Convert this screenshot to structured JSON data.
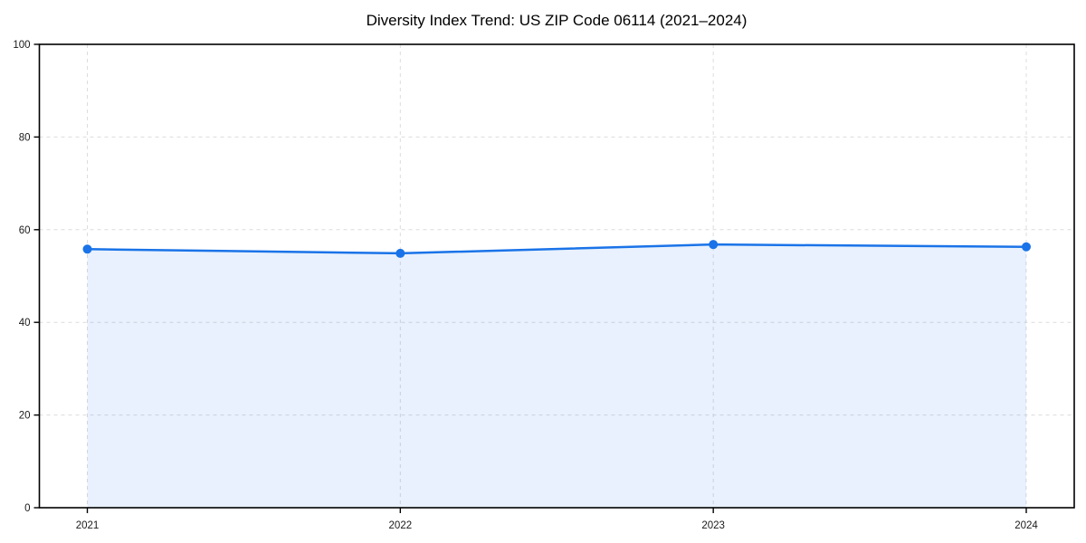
{
  "title": "Diversity Index Trend: US ZIP Code 06114 (2021–2024)",
  "chart_data": {
    "type": "line",
    "title": "Diversity Index Trend: US ZIP Code 06114 (2021–2024)",
    "x": [
      2021,
      2022,
      2023,
      2024
    ],
    "series": [
      {
        "name": "Diversity Index",
        "values": [
          55.8,
          54.9,
          56.8,
          56.3
        ]
      }
    ],
    "xlabel": "",
    "ylabel": "",
    "ylim": [
      0,
      100
    ],
    "yticks": [
      0,
      20,
      40,
      60,
      80,
      100
    ],
    "xticklabels": [
      "2021",
      "2022",
      "2023",
      "2024"
    ],
    "yticklabels": [
      "0",
      "20",
      "40",
      "60",
      "80",
      "100"
    ],
    "grid": true,
    "grid_style": "dashed",
    "legend": "none",
    "area_fill": true,
    "marker": "circle",
    "colors": {
      "line": "#1a73e8",
      "marker": "#1a73e8",
      "fill": "#1a73e8",
      "fill_opacity": 0.1,
      "grid": "#dcdcdc",
      "axis": "#000000",
      "tick_text": "#1a1a1a",
      "background": "#ffffff"
    }
  }
}
